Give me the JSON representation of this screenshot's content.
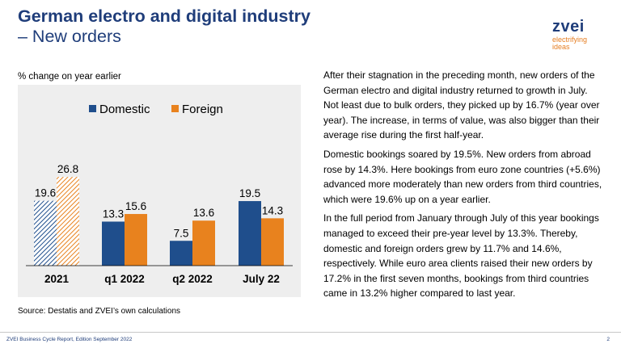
{
  "header": {
    "title_line1": "German electro and digital industry",
    "title_line2": "– New orders"
  },
  "logo": {
    "name": "zvei",
    "tagline": "electrifying ideas"
  },
  "subtitle": "% change on year earlier",
  "source": "Source: Destatis and ZVEI’s own calculations",
  "paragraphs": [
    "After their stagnation in the preceding month, new orders of the German electro and digital industry returned to growth in July. Not least due to bulk orders, they picked up by 16.7% (year over year). The increase, in terms of value, was also bigger than their average rise during the first half-year.",
    "Domestic bookings soared by 19.5%. New orders from abroad rose by 14.3%. Here bookings from euro zone countries (+5.6%) advanced more moderately than new orders from third countries, which were 19.6% up on a year earlier.",
    "In the full period from January through July of this year bookings managed to exceed their pre-year level by 13.3%. Thereby, domestic and foreign orders grew by 11.7% and 14.6%, respectively. While euro area clients raised their new orders by 17.2% in the first seven months, bookings from third countries came in 13.2% higher compared to last year."
  ],
  "footer": {
    "left": "ZVEI Business Cycle Report, Edition September 2022",
    "page": "2"
  },
  "colors": {
    "domestic": "#1f4e8c",
    "foreign": "#e8821e",
    "title": "#1f3d7a",
    "chart_bg": "#eeeeee"
  },
  "chart_data": {
    "type": "bar",
    "categories": [
      "2021",
      "q1 2022",
      "q2 2022",
      "July 22"
    ],
    "series": [
      {
        "name": "Domestic",
        "values": [
          19.6,
          13.3,
          7.5,
          19.5
        ]
      },
      {
        "name": "Foreign",
        "values": [
          26.8,
          15.6,
          13.6,
          14.3
        ]
      }
    ],
    "value_labels": [
      [
        "19.6",
        "13.3",
        "7.5",
        "19.5"
      ],
      [
        "26.8",
        "15.6",
        "13.6",
        "14.3"
      ]
    ],
    "ylim": [
      0,
      40
    ],
    "legend": "top",
    "grid": false,
    "hatched_categories": [
      "2021"
    ]
  }
}
